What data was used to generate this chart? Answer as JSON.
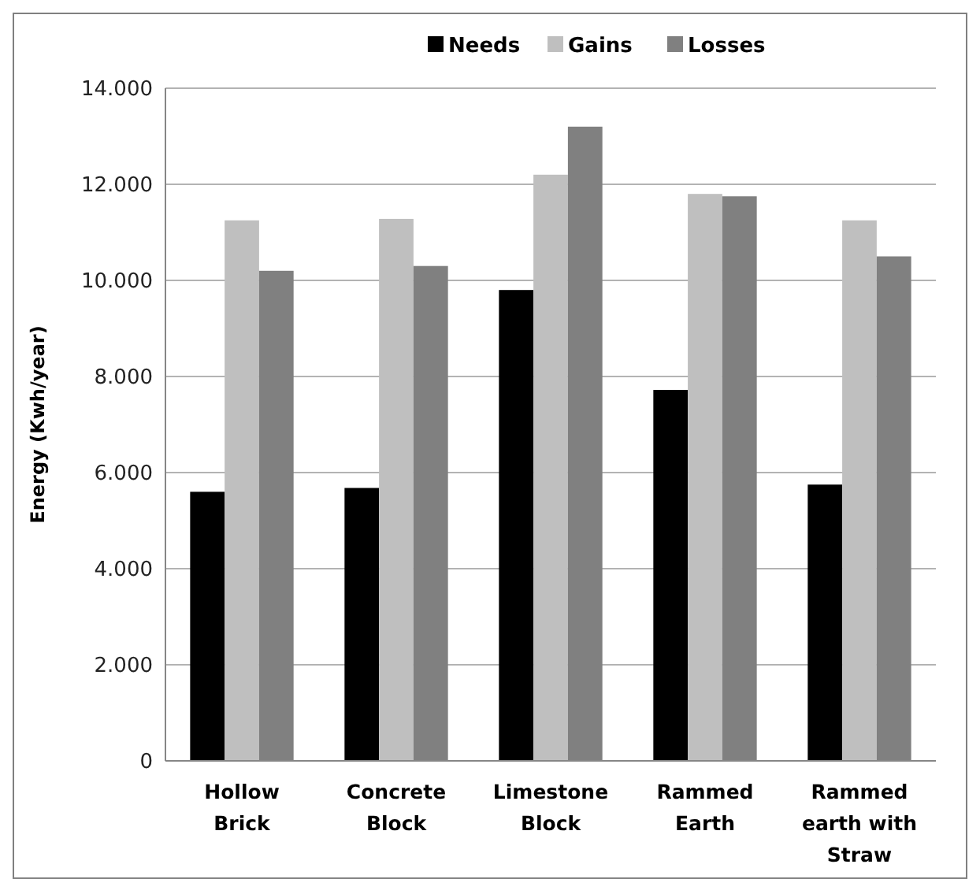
{
  "chart_data": {
    "type": "bar",
    "ylabel": "Energy (Kwh/year)",
    "categories": [
      "Hollow Brick",
      "Concrete Block",
      "Limestone Block",
      "Rammed Earth",
      "Rammed earth with Straw"
    ],
    "series": [
      {
        "name": "Needs",
        "color": "#000000",
        "values": [
          5600,
          5680,
          9800,
          7720,
          5750
        ]
      },
      {
        "name": "Gains",
        "color": "#bfbfbf",
        "values": [
          11250,
          11280,
          12200,
          11800,
          11250
        ]
      },
      {
        "name": "Losses",
        "color": "#808080",
        "values": [
          10200,
          10300,
          13200,
          11750,
          10500
        ]
      }
    ],
    "ylim": [
      0,
      14000
    ],
    "yticks": [
      0,
      {
        "value": 2000,
        "label": "2.000"
      },
      {
        "value": 4000,
        "label": "4.000"
      },
      {
        "value": 6000,
        "label": "6.000"
      },
      {
        "value": 8000,
        "label": "8.000"
      },
      {
        "value": 10000,
        "label": "10.000"
      },
      {
        "value": 12000,
        "label": "12.000"
      },
      {
        "value": 14000,
        "label": "14.000"
      }
    ],
    "grid": "y",
    "legend": "top"
  }
}
